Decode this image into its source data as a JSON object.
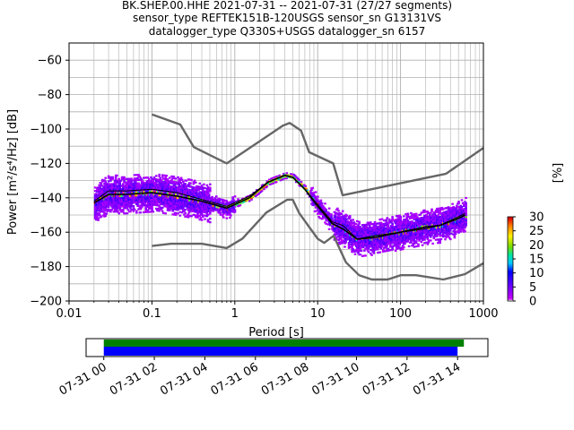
{
  "header": {
    "title_line1": "BK.SHEP.00.HHE   2021-07-31 -- 2021-07-31  (27/27 segments)",
    "title_line2": "sensor_type REFTEK151B-120USGS sensor_sn G13131VS",
    "title_line3": "datalogger_type Q330S+USGS datalogger_sn 6157"
  },
  "chart_data": [
    {
      "type": "heatmap",
      "subtype": "probabilistic power spectral density",
      "xlabel": "Period [s]",
      "ylabel": "Power [m²/s⁴/Hz] [dB]",
      "xscale": "log",
      "xlim": [
        0.01,
        1000
      ],
      "ylim": [
        -200,
        -50
      ],
      "x_ticks": [
        "0.01",
        "0.1",
        "1",
        "10",
        "100",
        "1000"
      ],
      "y_ticks": [
        "-200",
        "-180",
        "-160",
        "-140",
        "-120",
        "-100",
        "-80",
        "-60"
      ],
      "grid": true,
      "colorbar": {
        "label": "[%]",
        "range": [
          0,
          30
        ],
        "ticks": [
          "0",
          "5",
          "10",
          "15",
          "20",
          "25",
          "30"
        ],
        "colormap": "pqlx"
      },
      "noise_model_high": {
        "period": [
          0.1,
          0.22,
          0.32,
          0.8,
          3.8,
          4.6,
          6.3,
          7.9,
          15.4,
          20,
          354.8,
          1000
        ],
        "power": [
          -91.5,
          -97.4,
          -110.5,
          -120,
          -98,
          -96.5,
          -101,
          -113.5,
          -120,
          -138.5,
          -126,
          -111
        ]
      },
      "noise_model_low": {
        "period": [
          0.1,
          0.17,
          0.4,
          0.8,
          1.24,
          2.4,
          4.3,
          5,
          6,
          10,
          12,
          15.6,
          21.9,
          31.6,
          45,
          70,
          101,
          154,
          328,
          600,
          1000
        ],
        "power": [
          -168,
          -166.7,
          -166.7,
          -169.2,
          -163.7,
          -148.6,
          -141.1,
          -141.1,
          -149,
          -163.8,
          -166.2,
          -162.1,
          -177.5,
          -185,
          -187.5,
          -187.5,
          -185,
          -185,
          -187.5,
          -184.4,
          -178
        ]
      },
      "mean_psd": {
        "period": [
          0.02,
          0.03,
          0.05,
          0.1,
          0.2,
          0.4,
          0.8,
          1.5,
          2.5,
          4,
          5,
          7,
          10,
          15,
          20,
          30,
          50,
          100,
          200,
          300,
          500,
          600
        ],
        "power": [
          -143,
          -138,
          -138,
          -137,
          -139,
          -142,
          -146,
          -140,
          -131,
          -127,
          -128,
          -135,
          -145,
          -155,
          -158,
          -164,
          -163,
          -160,
          -157,
          -156,
          -152,
          -150
        ]
      },
      "mode_psd": {
        "period": [
          0.02,
          0.03,
          0.05,
          0.1,
          0.2,
          0.4,
          0.8,
          1.5,
          2.5,
          4,
          5,
          7,
          10,
          15,
          20,
          30,
          50,
          100,
          200,
          300,
          500,
          600
        ],
        "power": [
          -142,
          -136,
          -136,
          -135,
          -137,
          -141,
          -145,
          -139,
          -131,
          -127,
          -128,
          -135,
          -144,
          -154,
          -156,
          -164,
          -162,
          -160,
          -158,
          -156,
          -151,
          -149
        ]
      }
    },
    {
      "type": "timeline",
      "description_free": true,
      "x_ticks": [
        "07-31 00",
        "07-31 02",
        "07-31 04",
        "07-31 06",
        "07-31 08",
        "07-31 10",
        "07-31 12",
        "07-31 14"
      ],
      "xlim_hours": [
        -0.7,
        15.2
      ],
      "bars": [
        {
          "color": "#008000",
          "start_hour": 0.0,
          "end_hour": 14.25
        },
        {
          "color": "#0000ff",
          "start_hour": 0.0,
          "end_hour": 14.0
        }
      ]
    }
  ],
  "colors": {
    "noise_model": "#666666",
    "grid": "#b0b0b0",
    "mean_line": "#000000",
    "mode_line": "#000000"
  }
}
